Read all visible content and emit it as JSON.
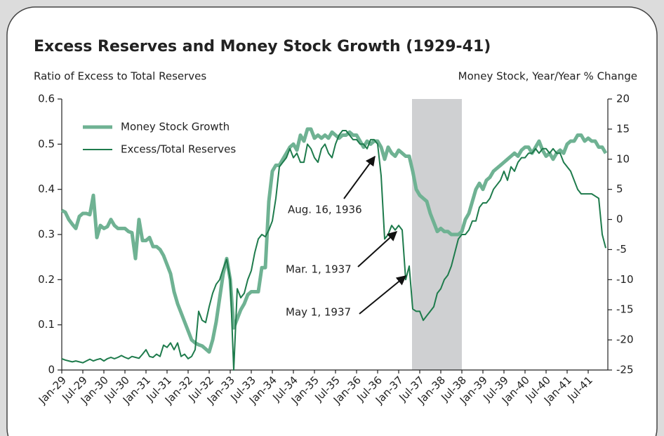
{
  "chart_data": {
    "type": "line",
    "title": "Excess Reserves and Money Stock Growth (1929-41)",
    "y_axis_label": "Ratio of Excess to Total Reserves",
    "y2_axis_label": "Money Stock, Year/Year % Change",
    "categories": [
      "Jan-29",
      null,
      null,
      null,
      null,
      null,
      "Jul-29",
      null,
      null,
      null,
      null,
      null,
      "Jan-30",
      null,
      null,
      null,
      null,
      null,
      "Jul-30",
      null,
      null,
      null,
      null,
      null,
      "Jan-31",
      null,
      null,
      null,
      null,
      null,
      "Jul-31",
      null,
      null,
      null,
      null,
      null,
      "Jan-32",
      null,
      null,
      null,
      null,
      null,
      "Jul-32",
      null,
      null,
      null,
      null,
      null,
      "Jan-33",
      null,
      null,
      null,
      null,
      null,
      "Jul-33",
      null,
      null,
      null,
      null,
      null,
      "Jan-34",
      null,
      null,
      null,
      null,
      null,
      "Jul-34",
      null,
      null,
      null,
      null,
      null,
      "Jan-35",
      null,
      null,
      null,
      null,
      null,
      "Jul-35",
      null,
      null,
      null,
      null,
      null,
      "Jan-36",
      null,
      null,
      null,
      null,
      null,
      "Jul-36",
      null,
      null,
      null,
      null,
      null,
      "Jan-37",
      null,
      null,
      null,
      null,
      null,
      "Jul-37",
      null,
      null,
      null,
      null,
      null,
      "Jan-38",
      null,
      null,
      null,
      null,
      null,
      "Jul-38",
      null,
      null,
      null,
      null,
      null,
      "Jan-39",
      null,
      null,
      null,
      null,
      null,
      "Jul-39",
      null,
      null,
      null,
      null,
      null,
      "Jan-40",
      null,
      null,
      null,
      null,
      null,
      "Jul-40",
      null,
      null,
      null,
      null,
      null,
      "Jan-41",
      null,
      null,
      null,
      null,
      null,
      "Jul-41",
      null,
      null,
      null,
      null,
      null
    ],
    "series": [
      {
        "name": "Money Stock Growth",
        "color": "#6fb293",
        "axis": "y2",
        "values": [
          1.5,
          1.2,
          0,
          -0.8,
          -1.5,
          0.5,
          1,
          1,
          0.8,
          4,
          -3,
          -1,
          -1.5,
          -1.2,
          0,
          -1,
          -1.5,
          -1.5,
          -1.5,
          -2,
          -2.2,
          -6.5,
          0,
          -3.5,
          -3.5,
          -3,
          -4.5,
          -4.5,
          -5,
          -6,
          -7.5,
          -9,
          -12,
          -14,
          -15.5,
          -17,
          -18.5,
          -20,
          -20.5,
          -20.8,
          -21,
          -21.5,
          -22,
          -20,
          -17,
          -13,
          -9,
          -6.5,
          -10,
          -18,
          -16.5,
          -15,
          -14,
          -12.5,
          -12,
          -12,
          -12,
          -8,
          -8,
          3,
          8,
          9,
          9,
          10,
          11,
          12,
          12.5,
          11.5,
          14,
          13,
          15,
          15,
          13.5,
          14,
          13.5,
          14,
          13.5,
          14.5,
          14,
          13.5,
          14,
          14,
          14.5,
          14,
          14,
          13,
          12,
          13,
          12.5,
          13,
          13,
          12,
          10,
          12,
          11,
          10.5,
          11.5,
          11,
          10.5,
          10.5,
          8,
          5,
          4,
          3.5,
          3,
          1,
          -0.5,
          -2,
          -1.5,
          -2,
          -2,
          -2.5,
          -2.5,
          -2.5,
          -2,
          0,
          1,
          3,
          5,
          6,
          5,
          6.5,
          7,
          8,
          8.5,
          9,
          9.5,
          10,
          10.5,
          11,
          10.5,
          11.5,
          12,
          12,
          11,
          12,
          13,
          11.5,
          10.5,
          11,
          10,
          11,
          11.5,
          11,
          12.5,
          13,
          13,
          14,
          14,
          13,
          13.5,
          13,
          13,
          12,
          12,
          11
        ]
      },
      {
        "name": "Excess/Total Reserves",
        "color": "#1e7b4c",
        "axis": "y",
        "values": [
          0.025,
          0.022,
          0.02,
          0.018,
          0.02,
          0.018,
          0.016,
          0.02,
          0.024,
          0.02,
          0.023,
          0.025,
          0.02,
          0.025,
          0.028,
          0.025,
          0.028,
          0.032,
          0.028,
          0.025,
          0.03,
          0.028,
          0.026,
          0.035,
          0.045,
          0.03,
          0.028,
          0.035,
          0.03,
          0.055,
          0.05,
          0.06,
          0.045,
          0.06,
          0.03,
          0.035,
          0.025,
          0.03,
          0.045,
          0.13,
          0.11,
          0.105,
          0.14,
          0.17,
          0.19,
          0.2,
          0.225,
          0.245,
          0.2,
          0,
          0.18,
          0.16,
          0.17,
          0.2,
          0.22,
          0.26,
          0.29,
          0.3,
          0.295,
          0.31,
          0.33,
          0.38,
          0.45,
          0.46,
          0.47,
          0.49,
          0.47,
          0.48,
          0.46,
          0.46,
          0.5,
          0.49,
          0.47,
          0.46,
          0.49,
          0.5,
          0.48,
          0.47,
          0.5,
          0.52,
          0.53,
          0.53,
          0.52,
          0.51,
          0.51,
          0.5,
          0.5,
          0.49,
          0.51,
          0.51,
          0.5,
          0.43,
          0.29,
          0.3,
          0.32,
          0.31,
          0.32,
          0.31,
          0.2,
          0.23,
          0.135,
          0.13,
          0.13,
          0.11,
          0.12,
          0.13,
          0.14,
          0.17,
          0.18,
          0.2,
          0.21,
          0.23,
          0.26,
          0.29,
          0.3,
          0.3,
          0.31,
          0.33,
          0.33,
          0.36,
          0.37,
          0.37,
          0.38,
          0.4,
          0.41,
          0.42,
          0.44,
          0.42,
          0.45,
          0.44,
          0.46,
          0.47,
          0.47,
          0.48,
          0.48,
          0.49,
          0.48,
          0.49,
          0.49,
          0.48,
          0.49,
          0.48,
          0.48,
          0.46,
          0.45,
          0.44,
          0.42,
          0.4,
          0.39,
          0.39,
          0.39,
          0.39,
          0.385,
          0.38,
          0.3,
          0.27
        ]
      }
    ],
    "ylim": [
      0,
      0.6
    ],
    "yticks": [
      0,
      0.1,
      0.2,
      0.3,
      0.4,
      0.5,
      0.6
    ],
    "y2lim": [
      -25,
      20
    ],
    "y2ticks": [
      -25,
      -20,
      -15,
      -10,
      -5,
      0,
      5,
      10,
      15,
      20
    ],
    "legend": "top-left",
    "annotations": [
      "Aug. 16, 1936",
      "Mar. 1, 1937",
      "May 1, 1937"
    ]
  }
}
